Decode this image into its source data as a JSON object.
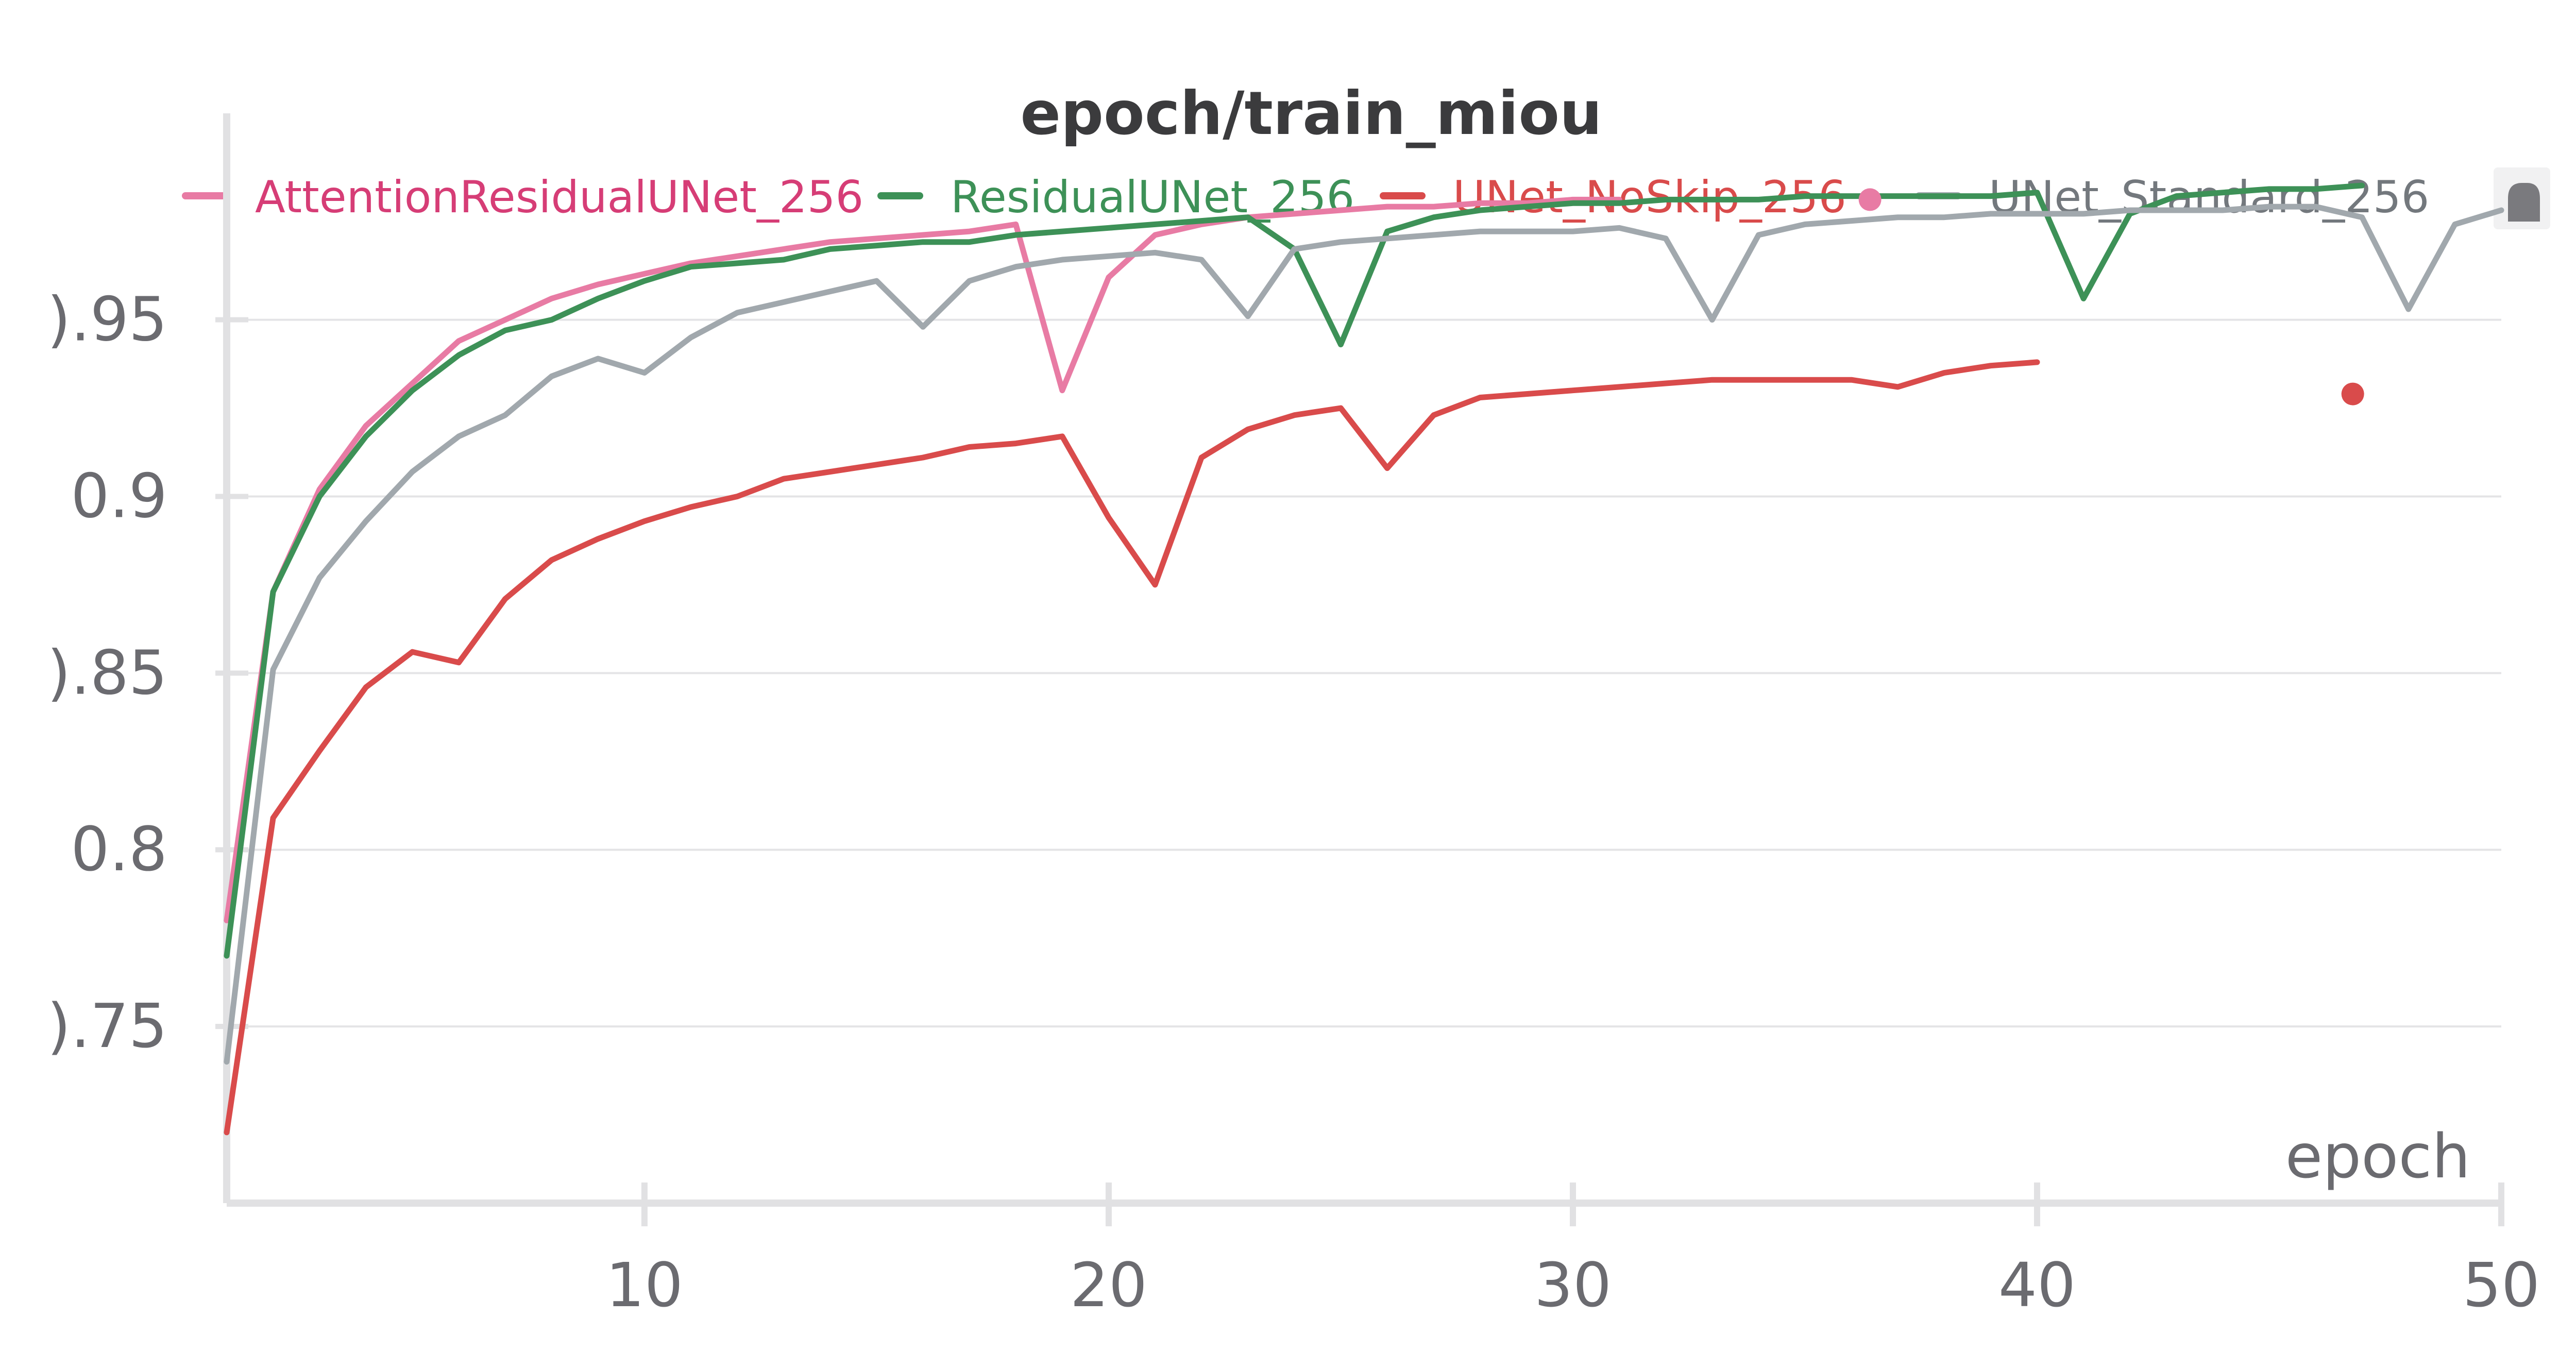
{
  "chart_data": {
    "type": "line",
    "title": "epoch/train_miou",
    "xlabel": "epoch",
    "ylabel": "",
    "xlim": [
      1,
      50
    ],
    "ylim": [
      0.7,
      0.988
    ],
    "x_ticks": [
      "10",
      "20",
      "30",
      "40",
      "50"
    ],
    "x_tick_values": [
      10,
      20,
      30,
      40,
      50
    ],
    "y_ticks": [
      ").95",
      "0.9",
      ").85",
      "0.8",
      ").75"
    ],
    "y_tick_values": [
      0.95,
      0.9,
      0.85,
      0.8,
      0.75
    ],
    "grid": true,
    "legend_position": "top",
    "series": [
      {
        "name": "AttentionResidualUNet_256",
        "color": "#e87ba4",
        "label_color": "#d63d76",
        "x": [
          1,
          2,
          3,
          4,
          5,
          6,
          7,
          8,
          9,
          10,
          11,
          12,
          13,
          14,
          15,
          16,
          17,
          18,
          19,
          20,
          21,
          22,
          23,
          24,
          25,
          26,
          27,
          28,
          29,
          30,
          31
        ],
        "y": [
          0.78,
          0.873,
          0.902,
          0.92,
          0.932,
          0.944,
          0.95,
          0.956,
          0.96,
          0.963,
          0.966,
          0.968,
          0.97,
          0.972,
          0.973,
          0.974,
          0.975,
          0.977,
          0.93,
          0.962,
          0.974,
          0.977,
          0.979,
          0.98,
          0.981,
          0.982,
          0.982,
          0.983,
          0.983,
          0.984,
          0.984
        ],
        "marker": {
          "x": 36.4,
          "y": 0.984
        }
      },
      {
        "name": "ResidualUNet_256",
        "color": "#3d9157",
        "label_color": "#3d9157",
        "x": [
          1,
          2,
          3,
          4,
          5,
          6,
          7,
          8,
          9,
          10,
          11,
          12,
          13,
          14,
          15,
          16,
          17,
          18,
          19,
          20,
          21,
          22,
          23,
          24,
          25,
          26,
          27,
          28,
          29,
          30,
          31,
          32,
          33,
          34,
          35,
          36,
          37,
          38,
          39,
          40,
          41,
          42,
          43,
          44,
          45,
          46,
          47
        ],
        "y": [
          0.77,
          0.873,
          0.9,
          0.917,
          0.93,
          0.94,
          0.947,
          0.95,
          0.956,
          0.961,
          0.965,
          0.966,
          0.967,
          0.97,
          0.971,
          0.972,
          0.972,
          0.974,
          0.975,
          0.976,
          0.977,
          0.978,
          0.979,
          0.97,
          0.943,
          0.975,
          0.979,
          0.981,
          0.982,
          0.983,
          0.983,
          0.984,
          0.984,
          0.984,
          0.985,
          0.985,
          0.985,
          0.985,
          0.985,
          0.986,
          0.956,
          0.98,
          0.985,
          0.986,
          0.987,
          0.987,
          0.988
        ]
      },
      {
        "name": "UNet_NoSkip_256",
        "color": "#d94b4b",
        "label_color": "#d94b4b",
        "x": [
          1,
          2,
          3,
          4,
          5,
          6,
          7,
          8,
          9,
          10,
          11,
          12,
          13,
          14,
          15,
          16,
          17,
          18,
          19,
          20,
          21,
          22,
          23,
          24,
          25,
          26,
          27,
          28,
          29,
          30,
          31,
          32,
          33,
          34,
          35,
          36,
          37,
          38,
          39,
          40
        ],
        "y": [
          0.72,
          0.809,
          0.828,
          0.846,
          0.856,
          0.853,
          0.871,
          0.882,
          0.888,
          0.893,
          0.897,
          0.9,
          0.905,
          0.907,
          0.909,
          0.911,
          0.914,
          0.915,
          0.917,
          0.894,
          0.875,
          0.911,
          0.919,
          0.923,
          0.925,
          0.908,
          0.923,
          0.928,
          0.929,
          0.93,
          0.931,
          0.932,
          0.933,
          0.933,
          0.933,
          0.933,
          0.931,
          0.935,
          0.937,
          0.938
        ],
        "marker": {
          "x": 46.8,
          "y": 0.929
        }
      },
      {
        "name": "UNet_Standard_256",
        "color": "#a1a8ad",
        "label_color": "#73787d",
        "x": [
          1,
          2,
          3,
          4,
          5,
          6,
          7,
          8,
          9,
          10,
          11,
          12,
          13,
          14,
          15,
          16,
          17,
          18,
          19,
          20,
          21,
          22,
          23,
          24,
          25,
          26,
          27,
          28,
          29,
          30,
          31,
          32,
          33,
          34,
          35,
          36,
          37,
          38,
          39,
          40,
          41,
          42,
          43,
          44,
          45,
          46,
          47,
          48,
          49,
          50
        ],
        "y": [
          0.74,
          0.851,
          0.877,
          0.893,
          0.907,
          0.917,
          0.923,
          0.934,
          0.939,
          0.935,
          0.945,
          0.952,
          0.955,
          0.958,
          0.961,
          0.948,
          0.961,
          0.965,
          0.967,
          0.968,
          0.969,
          0.967,
          0.951,
          0.97,
          0.972,
          0.973,
          0.974,
          0.975,
          0.975,
          0.975,
          0.976,
          0.973,
          0.95,
          0.974,
          0.977,
          0.978,
          0.979,
          0.979,
          0.98,
          0.98,
          0.98,
          0.981,
          0.981,
          0.981,
          0.982,
          0.982,
          0.979,
          0.953,
          0.977,
          0.981
        ]
      }
    ]
  }
}
